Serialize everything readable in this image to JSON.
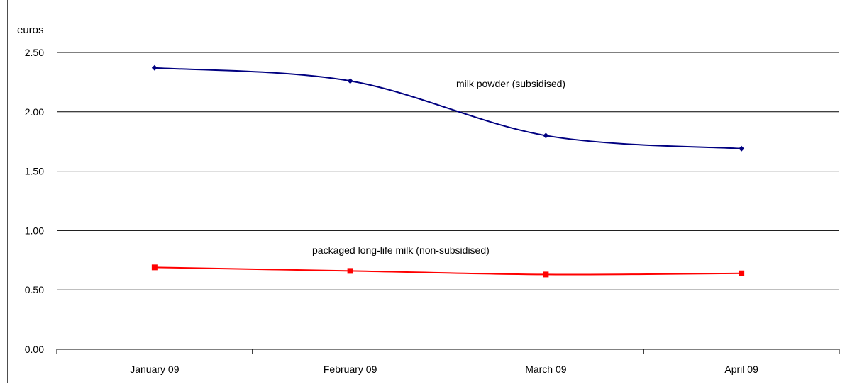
{
  "chart_data": {
    "type": "line",
    "ylabel": "euros",
    "ylim": [
      0,
      2.5
    ],
    "yticks": [
      "0.00",
      "0.50",
      "1.00",
      "1.50",
      "2.00",
      "2.50"
    ],
    "categories": [
      "January 09",
      "February 09",
      "March 09",
      "April 09"
    ],
    "series": [
      {
        "name": "milk powder (subsidised)",
        "values": [
          2.37,
          2.26,
          1.8,
          1.69
        ],
        "color": "#000080",
        "marker": "diamond"
      },
      {
        "name": "packaged long-life milk (non-subsidised)",
        "values": [
          0.69,
          0.66,
          0.63,
          0.64
        ],
        "color": "#ff0000",
        "marker": "square"
      }
    ],
    "grid": true,
    "legend": "inline labels"
  }
}
